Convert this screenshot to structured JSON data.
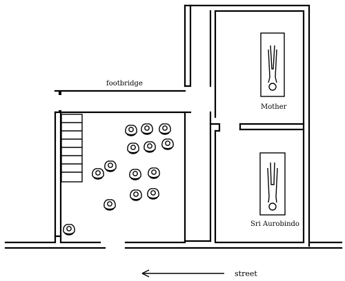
{
  "labels": {
    "footbridge": "footbridge",
    "mother": "Mother",
    "sri_aurobindo": "Sri Aurobindo",
    "street": "street"
  }
}
